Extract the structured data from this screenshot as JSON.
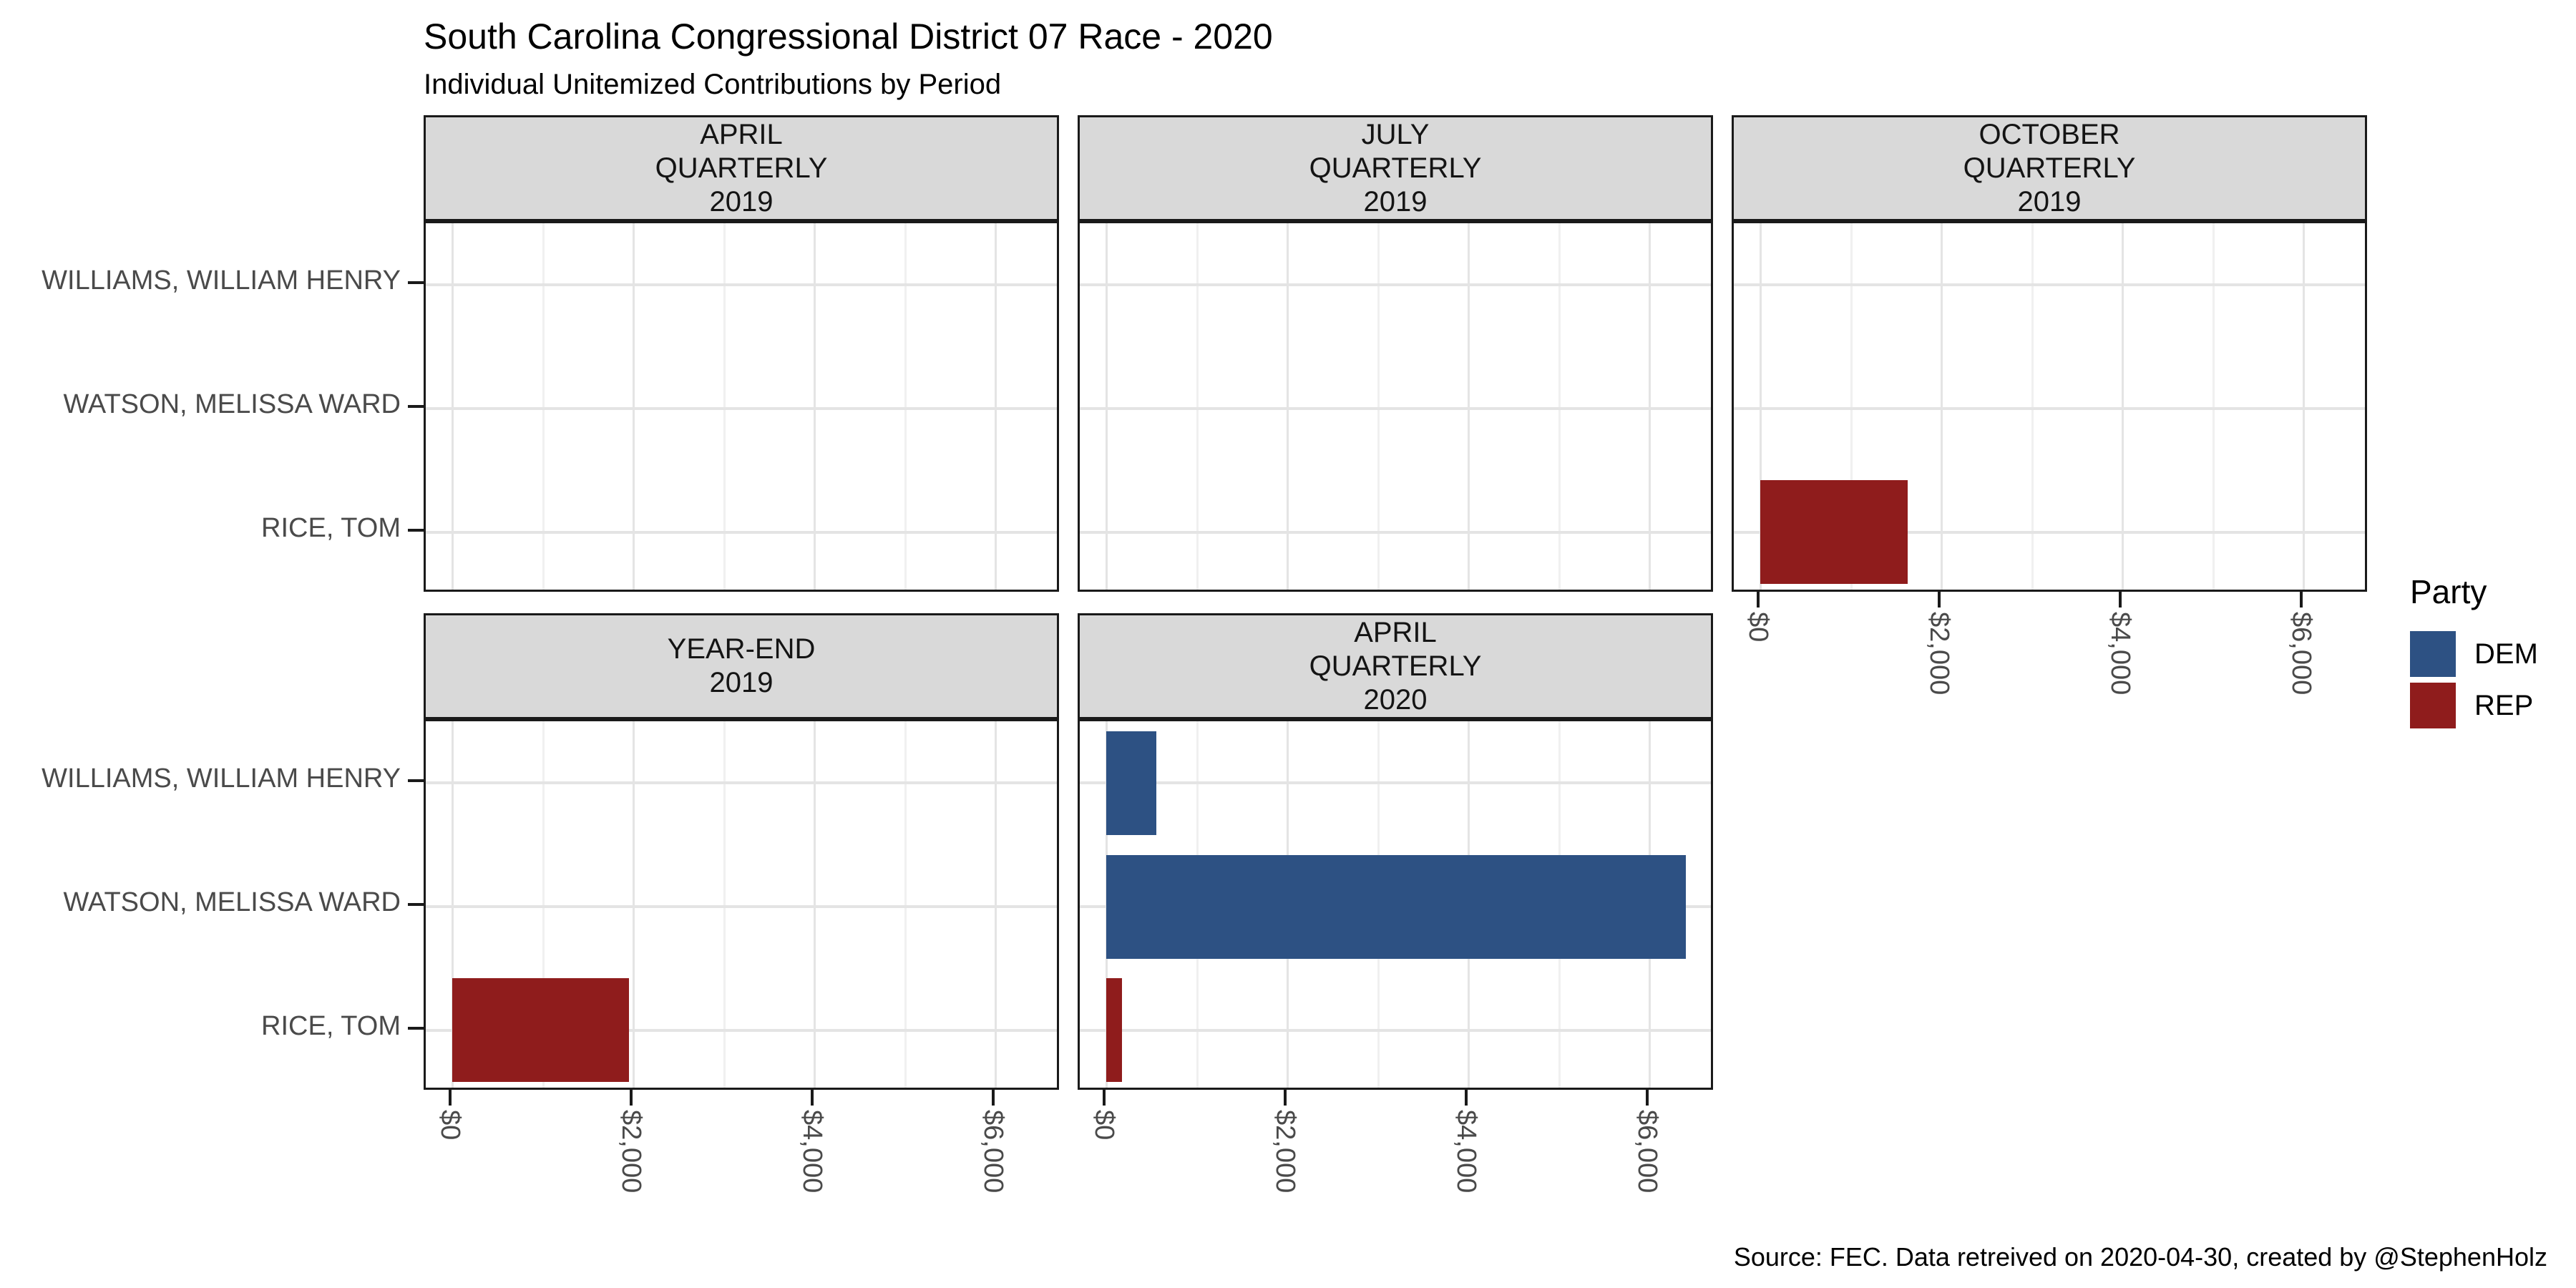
{
  "title": "South Carolina Congressional District 07 Race - 2020",
  "subtitle": "Individual Unitemized Contributions by Period",
  "caption": "Source: FEC. Data retreived on 2020-04-30, created by @StephenHolz",
  "legend": {
    "title": "Party",
    "entries": [
      {
        "label": "DEM",
        "color": "#2D5183"
      },
      {
        "label": "REP",
        "color": "#8F1C1C"
      }
    ]
  },
  "colors": {
    "dem": "#2D5183",
    "rep": "#8F1C1C",
    "strip_background": "#D9D9D9",
    "panel_border": "#1A1A1A",
    "grid_major": "#E4E4E4",
    "grid_minor": "#F0F0F0",
    "axis_text": "#4A4A4A"
  },
  "chart_data": {
    "type": "bar",
    "orientation": "horizontal",
    "title": "South Carolina Congressional District 07 Race - 2020",
    "subtitle": "Individual Unitemized Contributions by Period",
    "caption": "Source: FEC. Data retreived on 2020-04-30, created by @StephenHolz",
    "categories": [
      "WILLIAMS, WILLIAM HENRY",
      "WATSON, MELISSA WARD",
      "RICE, TOM"
    ],
    "xlabel": "",
    "ylabel": "",
    "x_ticks": [
      0,
      2000,
      4000,
      6000
    ],
    "x_tick_labels": [
      "$0",
      "$2,000",
      "$4,000",
      "$6,000"
    ],
    "x_minor_ticks": [
      1000,
      3000,
      5000
    ],
    "xlim": [
      0,
      6730
    ],
    "grid": true,
    "legend_position": "right",
    "legend_title": "Party",
    "series_colors": {
      "DEM": "#2D5183",
      "REP": "#8F1C1C"
    },
    "facets": [
      {
        "id": "april-quarterly-2019",
        "label_lines": [
          "APRIL",
          "QUARTERLY",
          "2019"
        ],
        "row": 0,
        "col": 0,
        "show_x_axis": false,
        "show_y_axis": true,
        "bars": []
      },
      {
        "id": "july-quarterly-2019",
        "label_lines": [
          "JULY",
          "QUARTERLY",
          "2019"
        ],
        "row": 0,
        "col": 1,
        "show_x_axis": false,
        "show_y_axis": false,
        "bars": []
      },
      {
        "id": "october-quarterly-2019",
        "label_lines": [
          "OCTOBER",
          "QUARTERLY",
          "2019"
        ],
        "row": 0,
        "col": 2,
        "show_x_axis": true,
        "show_y_axis": false,
        "bars": [
          {
            "candidate": "RICE, TOM",
            "party": "REP",
            "value": 1630
          }
        ]
      },
      {
        "id": "year-end-2019",
        "label_lines": [
          "YEAR-END",
          "2019"
        ],
        "row": 1,
        "col": 0,
        "show_x_axis": true,
        "show_y_axis": true,
        "bars": [
          {
            "candidate": "RICE, TOM",
            "party": "REP",
            "value": 1950
          }
        ]
      },
      {
        "id": "april-quarterly-2020",
        "label_lines": [
          "APRIL",
          "QUARTERLY",
          "2020"
        ],
        "row": 1,
        "col": 1,
        "show_x_axis": true,
        "show_y_axis": false,
        "bars": [
          {
            "candidate": "WILLIAMS, WILLIAM HENRY",
            "party": "DEM",
            "value": 550
          },
          {
            "candidate": "WATSON, MELISSA WARD",
            "party": "DEM",
            "value": 6400
          },
          {
            "candidate": "RICE, TOM",
            "party": "REP",
            "value": 170
          }
        ]
      }
    ]
  }
}
